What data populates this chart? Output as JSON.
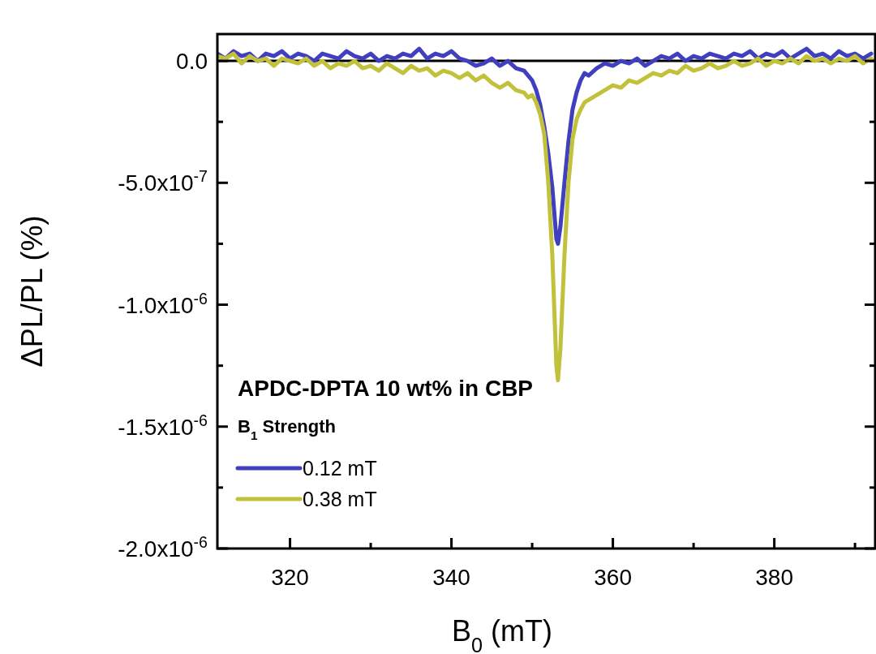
{
  "chart_data": {
    "type": "line",
    "xlabel": "B$_{0}$ (mT)",
    "ylabel": "ΔPL/PL (%)",
    "legend_title": "B$_{1}$ Strength",
    "annotations": [
      "APDC-DPTA 10 wt% in CBP"
    ],
    "legend": "bottom left",
    "line_style": "solid",
    "marker": "none",
    "grid": false,
    "xlim": [
      311,
      392.5
    ],
    "ylim": [
      -2e-06,
      1.1e-07
    ],
    "xticks": [
      320,
      {
        "value": 330,
        "label": null
      },
      340,
      {
        "value": 350,
        "label": null
      },
      360,
      {
        "value": 370,
        "label": null
      },
      380,
      {
        "value": 390,
        "label": null
      }
    ],
    "yticks": [
      {
        "value": 0,
        "label": "0.0"
      },
      {
        "value": -2.5e-07,
        "label": null
      },
      {
        "value": -5e-07,
        "label": "-5.0x10$^{-7}$"
      },
      {
        "value": -7.5e-07,
        "label": null
      },
      {
        "value": -1e-06,
        "label": "-1.0x10$^{-6}$"
      },
      {
        "value": -1.25e-06,
        "label": null
      },
      {
        "value": -1.5e-06,
        "label": "-1.5x10$^{-6}$"
      },
      {
        "value": -1.75e-06,
        "label": null
      },
      {
        "value": -2e-06,
        "label": "-2.0x10$^{-6}$"
      }
    ],
    "ref_lines": [
      {
        "axis": "y",
        "value": 0,
        "color": "#000000"
      }
    ],
    "x": [
      311,
      312,
      313,
      314,
      315,
      316,
      317,
      318,
      319,
      320,
      321,
      322,
      323,
      324,
      325,
      326,
      327,
      328,
      329,
      330,
      331,
      332,
      333,
      334,
      335,
      336,
      337,
      338,
      339,
      340,
      341,
      342,
      343,
      344,
      345,
      346,
      347,
      348,
      349,
      349.5,
      350,
      350.5,
      351,
      351.5,
      352,
      352.5,
      353,
      353.2,
      353.5,
      354,
      354.5,
      355,
      355.5,
      356,
      356.5,
      357,
      358,
      359,
      360,
      361,
      362,
      363,
      364,
      365,
      366,
      367,
      368,
      369,
      370,
      371,
      372,
      373,
      374,
      375,
      376,
      377,
      378,
      379,
      380,
      381,
      382,
      383,
      384,
      385,
      386,
      387,
      388,
      389,
      390,
      391,
      392
    ],
    "series": [
      {
        "name": "0.12 mT",
        "color": "#3f3fc0",
        "values": [
          3e-08,
          1e-08,
          4e-08,
          2e-08,
          3e-08,
          0,
          3e-08,
          2e-08,
          4e-08,
          1e-08,
          3e-08,
          2e-08,
          0,
          3e-08,
          2e-08,
          1e-08,
          4e-08,
          2e-08,
          1e-08,
          3e-08,
          0,
          2e-08,
          1e-08,
          3e-08,
          2e-08,
          5e-08,
          1e-08,
          3e-08,
          2e-08,
          4e-08,
          1e-08,
          0,
          -2e-08,
          -1e-08,
          1e-08,
          -2e-08,
          0,
          -3e-08,
          -4e-08,
          -6e-08,
          -8e-08,
          -1.2e-07,
          -1.8e-07,
          -2.7e-07,
          -3.8e-07,
          -5.2e-07,
          -7.3e-07,
          -7.5e-07,
          -6.8e-07,
          -5e-07,
          -3.3e-07,
          -2e-07,
          -1.3e-07,
          -8e-08,
          -5e-08,
          -6e-08,
          -3e-08,
          -1e-08,
          -2e-08,
          0,
          -1e-08,
          1e-08,
          -2e-08,
          0,
          2e-08,
          1e-08,
          3e-08,
          0,
          2e-08,
          1e-08,
          3e-08,
          2e-08,
          1e-08,
          3e-08,
          2e-08,
          4e-08,
          1e-08,
          3e-08,
          2e-08,
          4e-08,
          1e-08,
          3e-08,
          5e-08,
          2e-08,
          3e-08,
          1e-08,
          4e-08,
          2e-08,
          3e-08,
          1e-08,
          3e-08
        ]
      },
      {
        "name": "0.38 mT",
        "color": "#c2c13c",
        "values": [
          2e-08,
          1e-08,
          3e-08,
          -1e-08,
          2e-08,
          0,
          1e-08,
          -2e-08,
          1e-08,
          0,
          -1e-08,
          1e-08,
          -2e-08,
          0,
          -3e-08,
          -1e-08,
          -2e-08,
          0,
          -3e-08,
          -2e-08,
          -4e-08,
          -1e-08,
          -3e-08,
          -5e-08,
          -2e-08,
          -4e-08,
          -3e-08,
          -6e-08,
          -4e-08,
          -5e-08,
          -7e-08,
          -5e-08,
          -8e-08,
          -6e-08,
          -9e-08,
          -1.1e-07,
          -9e-08,
          -1.2e-07,
          -1.3e-07,
          -1.5e-07,
          -1.4e-07,
          -1.7e-07,
          -2.2e-07,
          -3e-07,
          -5e-07,
          -8e-07,
          -1.25e-06,
          -1.31e-06,
          -1.18e-06,
          -8e-07,
          -5e-07,
          -3.2e-07,
          -2.4e-07,
          -2e-07,
          -1.7e-07,
          -1.6e-07,
          -1.4e-07,
          -1.2e-07,
          -1e-07,
          -1.1e-07,
          -8e-08,
          -9e-08,
          -7e-08,
          -5e-08,
          -6e-08,
          -4e-08,
          -5e-08,
          -2e-08,
          -4e-08,
          -3e-08,
          -1e-08,
          -3e-08,
          -2e-08,
          0,
          -2e-08,
          -1e-08,
          1e-08,
          -2e-08,
          0,
          -1e-08,
          1e-08,
          -1e-08,
          2e-08,
          0,
          1e-08,
          -1e-08,
          1e-08,
          0,
          2e-08,
          -1e-08,
          1e-08
        ]
      }
    ]
  }
}
